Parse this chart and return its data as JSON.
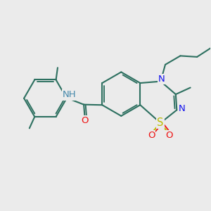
{
  "bg_color": "#ebebeb",
  "bond_color": "#2d7060",
  "lw": 1.5,
  "N_color": "#1111ee",
  "S_color": "#bbbb00",
  "O_color": "#ee1111",
  "NH_color": "#4488aa",
  "font_size": 9.0,
  "fig_w": 3.0,
  "fig_h": 3.0,
  "dpi": 100,
  "xlim": [
    0,
    10
  ],
  "ylim": [
    0,
    10
  ]
}
